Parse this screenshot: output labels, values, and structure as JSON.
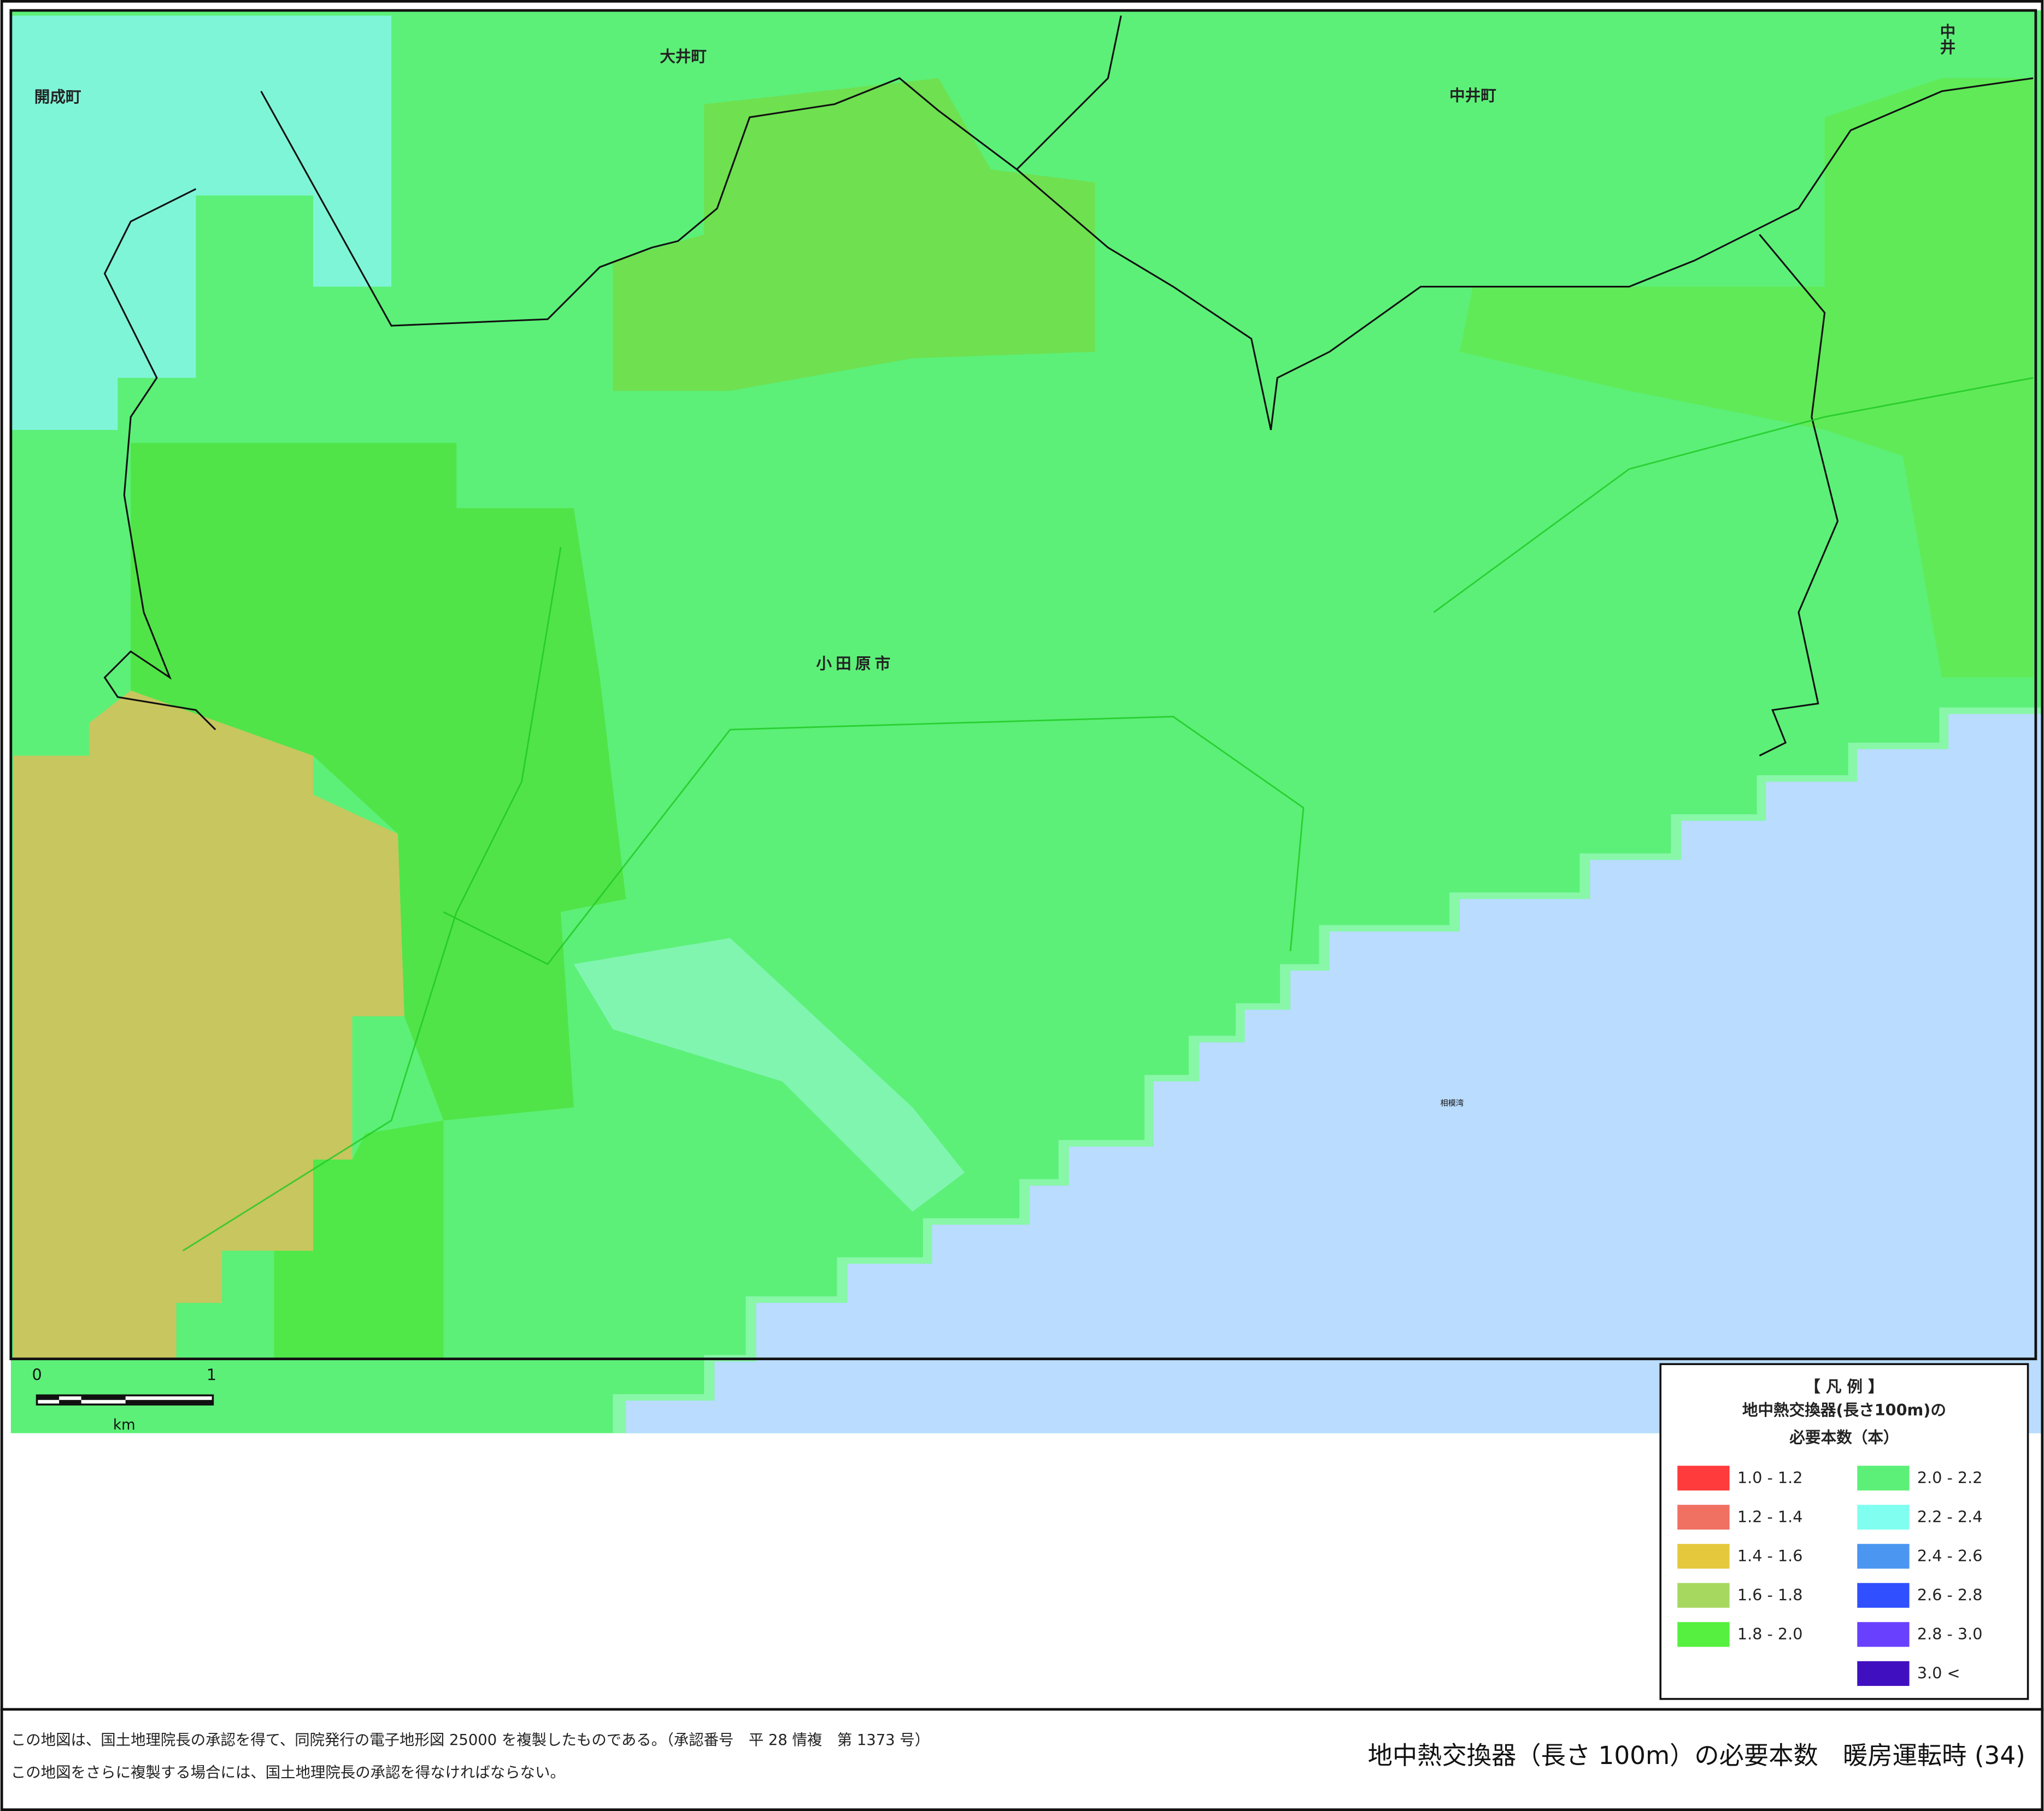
{
  "map": {
    "place_labels": [
      "大井町",
      "中井町",
      "開成町",
      "小田原市",
      "中井",
      "相模湾"
    ]
  },
  "scale_bar": {
    "start": "0",
    "end": "1",
    "unit": "km"
  },
  "legend": {
    "title": "【 凡 例 】",
    "subtitle": [
      "地中熱交換器(長さ100m)の",
      "必要本数（本）"
    ],
    "items": [
      {
        "label": "1.0 - 1.2",
        "color": "#ff3b3b"
      },
      {
        "label": "1.2 - 1.4",
        "color": "#f07062"
      },
      {
        "label": "1.4 - 1.6",
        "color": "#e6c83c"
      },
      {
        "label": "1.6 - 1.8",
        "color": "#a6d860"
      },
      {
        "label": "1.8 - 2.0",
        "color": "#55f040"
      },
      {
        "label": "2.0 - 2.2",
        "color": "#5cf078"
      },
      {
        "label": "2.2 - 2.4",
        "color": "#80fff0"
      },
      {
        "label": "2.4 - 2.6",
        "color": "#4a96f0"
      },
      {
        "label": "2.6 - 2.8",
        "color": "#3050ff"
      },
      {
        "label": "2.8 - 3.0",
        "color": "#6a40ff"
      },
      {
        "label": "3.0 <",
        "color": "#4010c0"
      }
    ]
  },
  "footer": {
    "notes": [
      "この地図は、国土地理院長の承認を得て、同院発行の電子地形図 25000 を複製したものである。（承認番号　平 28 情複　第 1373 号）",
      "この地図をさらに複製する場合には、国土地理院長の承認を得なければならない。"
    ],
    "title": "地中熱交換器（長さ 100m）の必要本数　暖房運転時 (34)"
  }
}
